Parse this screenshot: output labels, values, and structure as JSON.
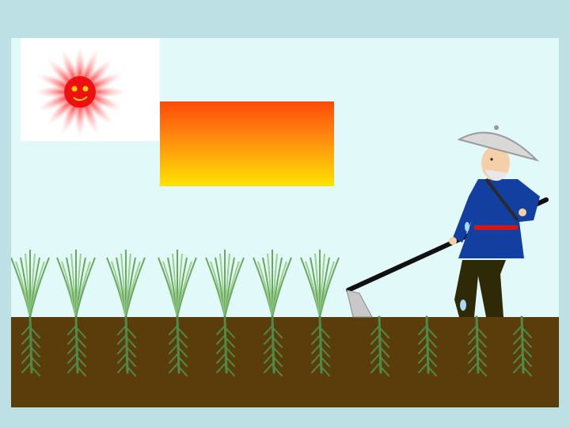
{
  "scene": {
    "description_icons": [
      "sun-icon",
      "farmer-icon",
      "hoe-icon",
      "seedling-icon"
    ],
    "colors": {
      "background": "#bde0e4",
      "sky": "#e2f9f9",
      "soil": "#5b3d0c",
      "sun": "#ff2a2a",
      "gradient_top": "#ff4a08",
      "gradient_bottom": "#ffe300",
      "robe": "#1340a0",
      "grass": "#6aa860",
      "root": "#4f8a48"
    },
    "seedling_count": 7,
    "root_only_count": 4
  }
}
